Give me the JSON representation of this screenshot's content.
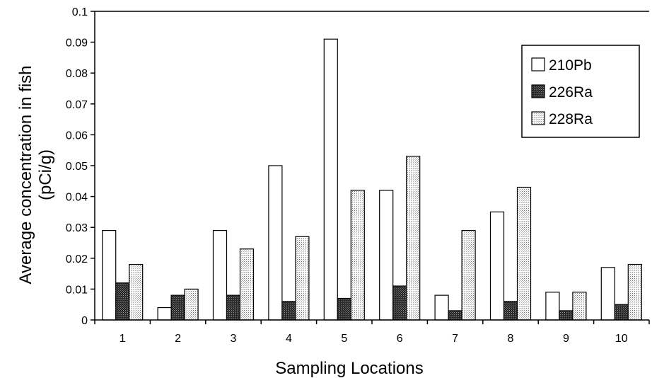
{
  "chart_data": {
    "type": "bar",
    "title": "",
    "xlabel": "Sampling Locations",
    "ylabel_line1": "Average concentration in fish",
    "ylabel_line2": "(pCi/g)",
    "ylim": [
      0,
      0.1
    ],
    "yticks": [
      "0",
      "0.01",
      "0.02",
      "0.03",
      "0.04",
      "0.05",
      "0.06",
      "0.07",
      "0.08",
      "0.09",
      "0.1"
    ],
    "categories": [
      "1",
      "2",
      "3",
      "4",
      "5",
      "6",
      "7",
      "8",
      "9",
      "10"
    ],
    "grid": false,
    "legend_position": "top-right",
    "series": [
      {
        "name": "210Pb",
        "fill": "#ffffff",
        "pattern": "none",
        "values": [
          0.029,
          0.004,
          0.029,
          0.05,
          0.091,
          0.042,
          0.008,
          0.035,
          0.009,
          0.017
        ]
      },
      {
        "name": "226Ra",
        "fill": "#333333",
        "pattern": "dense-dark",
        "values": [
          0.012,
          0.008,
          0.008,
          0.006,
          0.007,
          0.011,
          0.003,
          0.006,
          0.003,
          0.005
        ]
      },
      {
        "name": "228Ra",
        "fill": "#f0f0f0",
        "pattern": "light-dotted",
        "values": [
          0.018,
          0.01,
          0.023,
          0.027,
          0.042,
          0.053,
          0.029,
          0.043,
          0.009,
          0.018
        ]
      }
    ]
  }
}
